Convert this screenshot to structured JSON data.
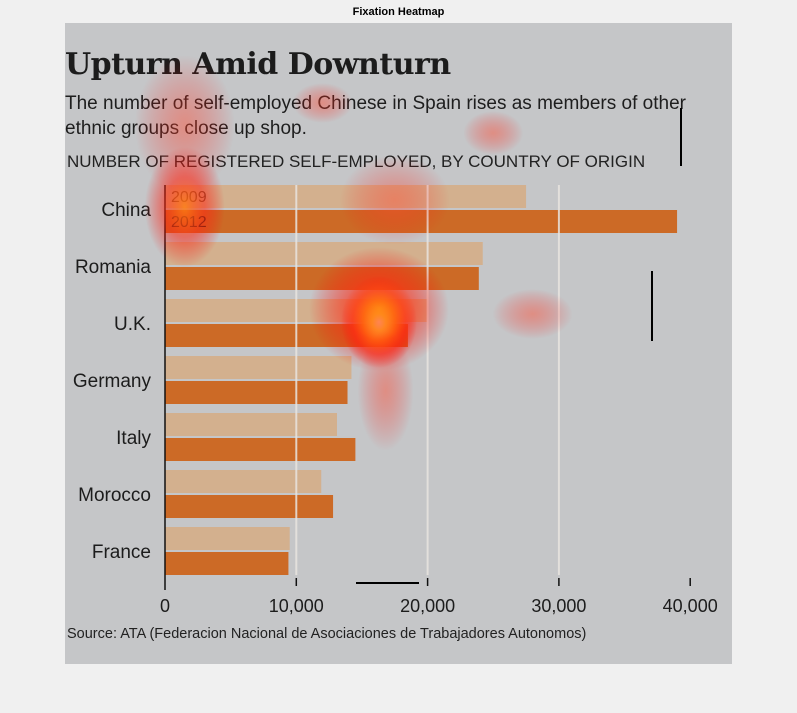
{
  "figure_title": "Fixation Heatmap",
  "infographic": {
    "headline": "Upturn Amid Downturn",
    "subtitle": "The number of self-employed Chinese in Spain rises as members of other ethnic groups close up shop.",
    "axis_caption": "NUMBER OF REGISTERED SELF-EMPLOYED, BY COUNTRY OF ORIGIN",
    "source": "Source: ATA (Federacion Nacional de Asociaciones de Trabajadores Autonomos)"
  },
  "colors": {
    "panel_bg": "#c5c6c8",
    "bar_2009": "#d3b08e",
    "bar_2012": "#cc6a26",
    "text": "#1c1c1c"
  },
  "chart_data": {
    "type": "bar",
    "orientation": "horizontal",
    "categories": [
      "China",
      "Romania",
      "U.K.",
      "Germany",
      "Italy",
      "Morocco",
      "France"
    ],
    "series": [
      {
        "name": "2009",
        "values": [
          27500,
          24200,
          20000,
          14200,
          13100,
          11900,
          9500
        ]
      },
      {
        "name": "2012",
        "values": [
          39000,
          23900,
          18500,
          13900,
          14500,
          12800,
          9400
        ]
      }
    ],
    "xlim": [
      0,
      40000
    ],
    "xticks": [
      0,
      10000,
      20000,
      30000,
      40000
    ],
    "xtick_labels": [
      "0",
      "10,000",
      "20,000",
      "30,000",
      "40,000"
    ],
    "gridlines": true,
    "legend_placement": "inside-top-left",
    "xlabel": "",
    "ylabel": ""
  },
  "heatmap_overlay": {
    "description_visible": false,
    "fixations": [
      {
        "x": 16300,
        "row": 2,
        "intensity": 1.0
      },
      {
        "x": 1500,
        "row": 0,
        "intensity": 0.7
      },
      {
        "x": 17000,
        "row": 0.2,
        "intensity": 0.5
      },
      {
        "x": 16800,
        "row": 3.3,
        "intensity": 0.45
      },
      {
        "x": 25000,
        "row": -1.2,
        "intensity": 0.4
      },
      {
        "x": 3000,
        "row": -2.6,
        "intensity": 0.45
      },
      {
        "x": 28000,
        "row": 2,
        "intensity": 0.25
      }
    ]
  }
}
